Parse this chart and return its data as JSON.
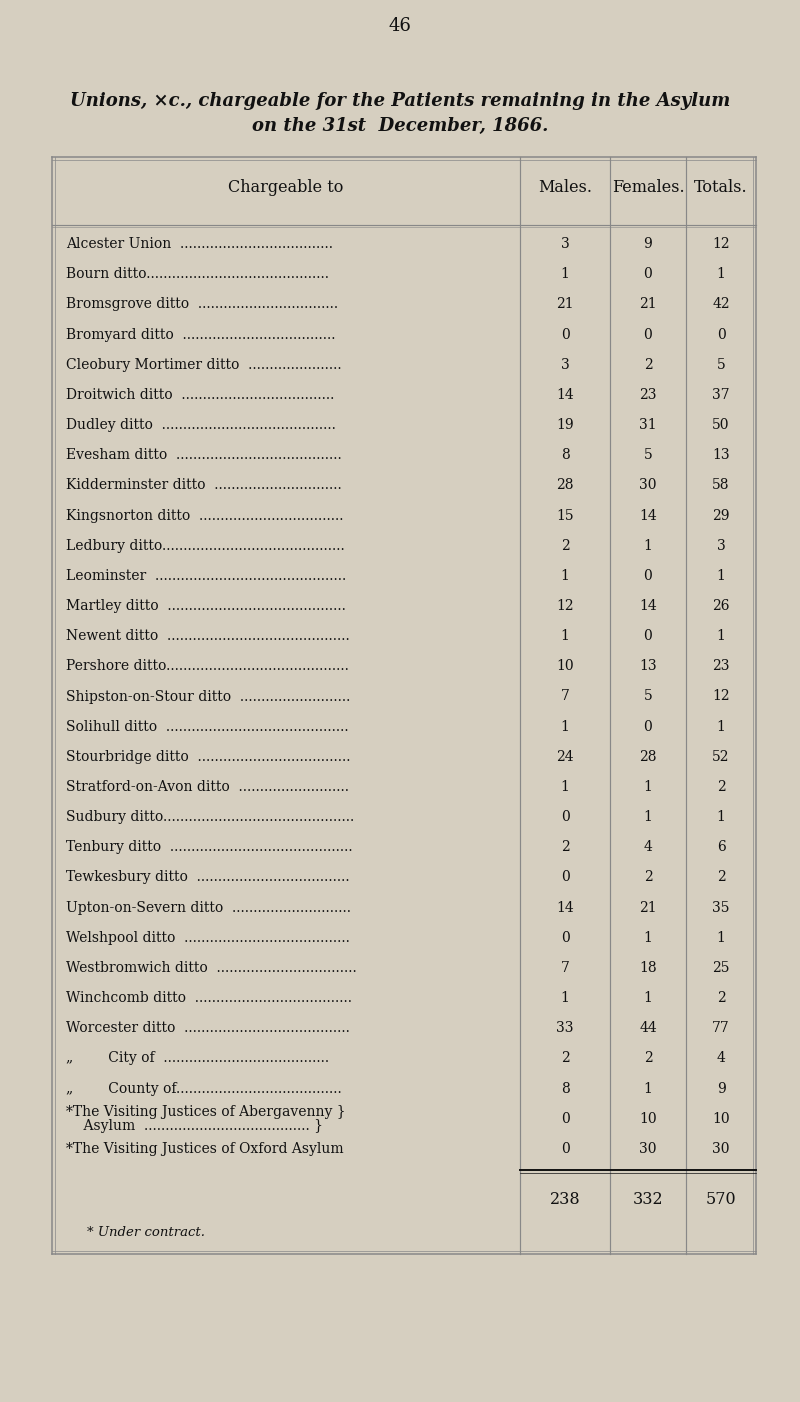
{
  "page_number": "46",
  "title_line1": "Unions, ×c., chargeable for the Patients remaining in the Asylum",
  "title_line2": "on the 31st  December, 1866.",
  "col_header": "Chargeable to",
  "col_males": "Males.",
  "col_females": "Females.",
  "col_totals": "Totals.",
  "rows": [
    {
      "label": "Alcester Union  ....................................",
      "males": "3",
      "females": "9",
      "totals": "12"
    },
    {
      "label": "Bourn ditto...........................................",
      "males": "1",
      "females": "0",
      "totals": "1"
    },
    {
      "label": "Bromsgrove ditto  .................................",
      "males": "21",
      "females": "21",
      "totals": "42"
    },
    {
      "label": "Bromyard ditto  ....................................",
      "males": "0",
      "females": "0",
      "totals": "0"
    },
    {
      "label": "Cleobury Mortimer ditto  ......................",
      "males": "3",
      "females": "2",
      "totals": "5"
    },
    {
      "label": "Droitwich ditto  ....................................",
      "males": "14",
      "females": "23",
      "totals": "37"
    },
    {
      "label": "Dudley ditto  .........................................",
      "males": "19",
      "females": "31",
      "totals": "50"
    },
    {
      "label": "Evesham ditto  .......................................",
      "males": "8",
      "females": "5",
      "totals": "13"
    },
    {
      "label": "Kidderminster ditto  ..............................",
      "males": "28",
      "females": "30",
      "totals": "58"
    },
    {
      "label": "Kingsnorton ditto  ..................................",
      "males": "15",
      "females": "14",
      "totals": "29"
    },
    {
      "label": "Ledbury ditto...........................................",
      "males": "2",
      "females": "1",
      "totals": "3"
    },
    {
      "label": "Leominster  .............................................",
      "males": "1",
      "females": "0",
      "totals": "1"
    },
    {
      "label": "Martley ditto  ..........................................",
      "males": "12",
      "females": "14",
      "totals": "26"
    },
    {
      "label": "Newent ditto  ...........................................",
      "males": "1",
      "females": "0",
      "totals": "1"
    },
    {
      "label": "Pershore ditto...........................................",
      "males": "10",
      "females": "13",
      "totals": "23"
    },
    {
      "label": "Shipston-on-Stour ditto  ..........................",
      "males": "7",
      "females": "5",
      "totals": "12"
    },
    {
      "label": "Solihull ditto  ...........................................",
      "males": "1",
      "females": "0",
      "totals": "1"
    },
    {
      "label": "Stourbridge ditto  ....................................",
      "males": "24",
      "females": "28",
      "totals": "52"
    },
    {
      "label": "Stratford-on-Avon ditto  ..........................",
      "males": "1",
      "females": "1",
      "totals": "2"
    },
    {
      "label": "Sudbury ditto.............................................",
      "males": "0",
      "females": "1",
      "totals": "1"
    },
    {
      "label": "Tenbury ditto  ...........................................",
      "males": "2",
      "females": "4",
      "totals": "6"
    },
    {
      "label": "Tewkesbury ditto  ....................................",
      "males": "0",
      "females": "2",
      "totals": "2"
    },
    {
      "label": "Upton-on-Severn ditto  ............................",
      "males": "14",
      "females": "21",
      "totals": "35"
    },
    {
      "label": "Welshpool ditto  .......................................",
      "males": "0",
      "females": "1",
      "totals": "1"
    },
    {
      "label": "Westbromwich ditto  .................................",
      "males": "7",
      "females": "18",
      "totals": "25"
    },
    {
      "label": "Winchcomb ditto  .....................................",
      "males": "1",
      "females": "1",
      "totals": "2"
    },
    {
      "label": "Worcester ditto  .......................................",
      "males": "33",
      "females": "44",
      "totals": "77"
    },
    {
      "label": "„        City of  .......................................",
      "males": "2",
      "females": "2",
      "totals": "4"
    },
    {
      "label": "„        County of.......................................",
      "males": "8",
      "females": "1",
      "totals": "9"
    },
    {
      "label": "*The Visiting Justices of Abergavenny }",
      "males": "0",
      "females": "10",
      "totals": "10",
      "label2": "    Asylum  ....................................... }"
    },
    {
      "label": "*The Visiting Justices of Oxford Asylum",
      "males": "0",
      "females": "30",
      "totals": "30"
    }
  ],
  "total_row": {
    "males": "238",
    "females": "332",
    "totals": "570"
  },
  "footnote": "* Under contract.",
  "bg_color": "#d6cfc0",
  "text_color": "#111111",
  "table_border_color": "#888888",
  "table_bg": "#d6cfc0"
}
